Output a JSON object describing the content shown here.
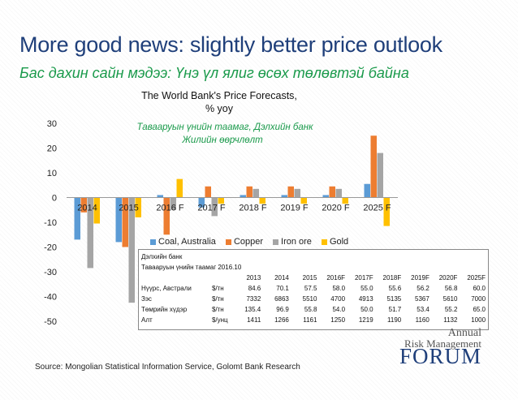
{
  "slide": {
    "title": "More good news: slightly better price outlook",
    "subtitle": "Бас дахин сайн мэдээ: Үнэ үл ялиг өсөх төлөвтэй байна",
    "source": "Source: Mongolian Statistical Information Service, Golomt Bank Research"
  },
  "logo": {
    "line1": "Annual",
    "line2": "Risk Management",
    "line3": "FORUM"
  },
  "colors": {
    "coal": "#5b9bd5",
    "copper": "#ed7d31",
    "iron_ore": "#a5a5a5",
    "gold": "#ffc000",
    "title": "#1f3f7a",
    "subtitle_green": "#1a9a4b"
  },
  "chart_data": {
    "type": "bar",
    "title_lines": [
      "The World Bank's Price Forecasts,",
      "% yoy"
    ],
    "note_lines": [
      "Тавааруын үнийн таамаг, Дэлхийн банк",
      "Жилийн өөрчлөлт"
    ],
    "categories": [
      "2014",
      "2015",
      "2016 F",
      "2017 F",
      "2018 F",
      "2019 F",
      "2020 F",
      "2025 F"
    ],
    "series": [
      {
        "name": "Coal, Australia",
        "values": [
          -17,
          -18,
          1,
          -4,
          1,
          1,
          1,
          5.5
        ]
      },
      {
        "name": "Copper",
        "values": [
          -6,
          -20,
          -15,
          4.5,
          4.5,
          4.5,
          4.5,
          25
        ]
      },
      {
        "name": "Iron ore",
        "values": [
          -28.5,
          -42.5,
          -5,
          -7.5,
          3.5,
          3.5,
          3.5,
          18
        ]
      },
      {
        "name": "Gold",
        "values": [
          -10.5,
          -8,
          7.5,
          -2.5,
          -2.5,
          -2.5,
          -2.5,
          -11.5
        ]
      }
    ],
    "yticks": [
      30,
      20,
      10,
      0,
      -10,
      -20,
      -30,
      -40,
      -50
    ],
    "ylim": [
      -50,
      30
    ],
    "legend": "bottom",
    "grid": false
  },
  "table": {
    "caption1": "Дэлхийн банк",
    "caption2": "Тавааруын үнийн таамаг 2016.10",
    "years": [
      "2013",
      "2014",
      "2015",
      "2016F",
      "2017F",
      "2018F",
      "2019F",
      "2020F",
      "2025F"
    ],
    "rows": [
      {
        "name": "Нүүрс, Австрали",
        "unit": "$/тн",
        "values": [
          "84.6",
          "70.1",
          "57.5",
          "58.0",
          "55.0",
          "55.6",
          "56.2",
          "56.8",
          "60.0"
        ]
      },
      {
        "name": "Зэс",
        "unit": "$/тн",
        "values": [
          "7332",
          "6863",
          "5510",
          "4700",
          "4913",
          "5135",
          "5367",
          "5610",
          "7000"
        ]
      },
      {
        "name": "Төмрийн хүдэр",
        "unit": "$/тн",
        "values": [
          "135.4",
          "96.9",
          "55.8",
          "54.0",
          "50.0",
          "51.7",
          "53.4",
          "55.2",
          "65.0"
        ]
      },
      {
        "name": "Алт",
        "unit": "$/унц",
        "values": [
          "1411",
          "1266",
          "1161",
          "1250",
          "1219",
          "1190",
          "1160",
          "1132",
          "1000"
        ]
      }
    ]
  }
}
